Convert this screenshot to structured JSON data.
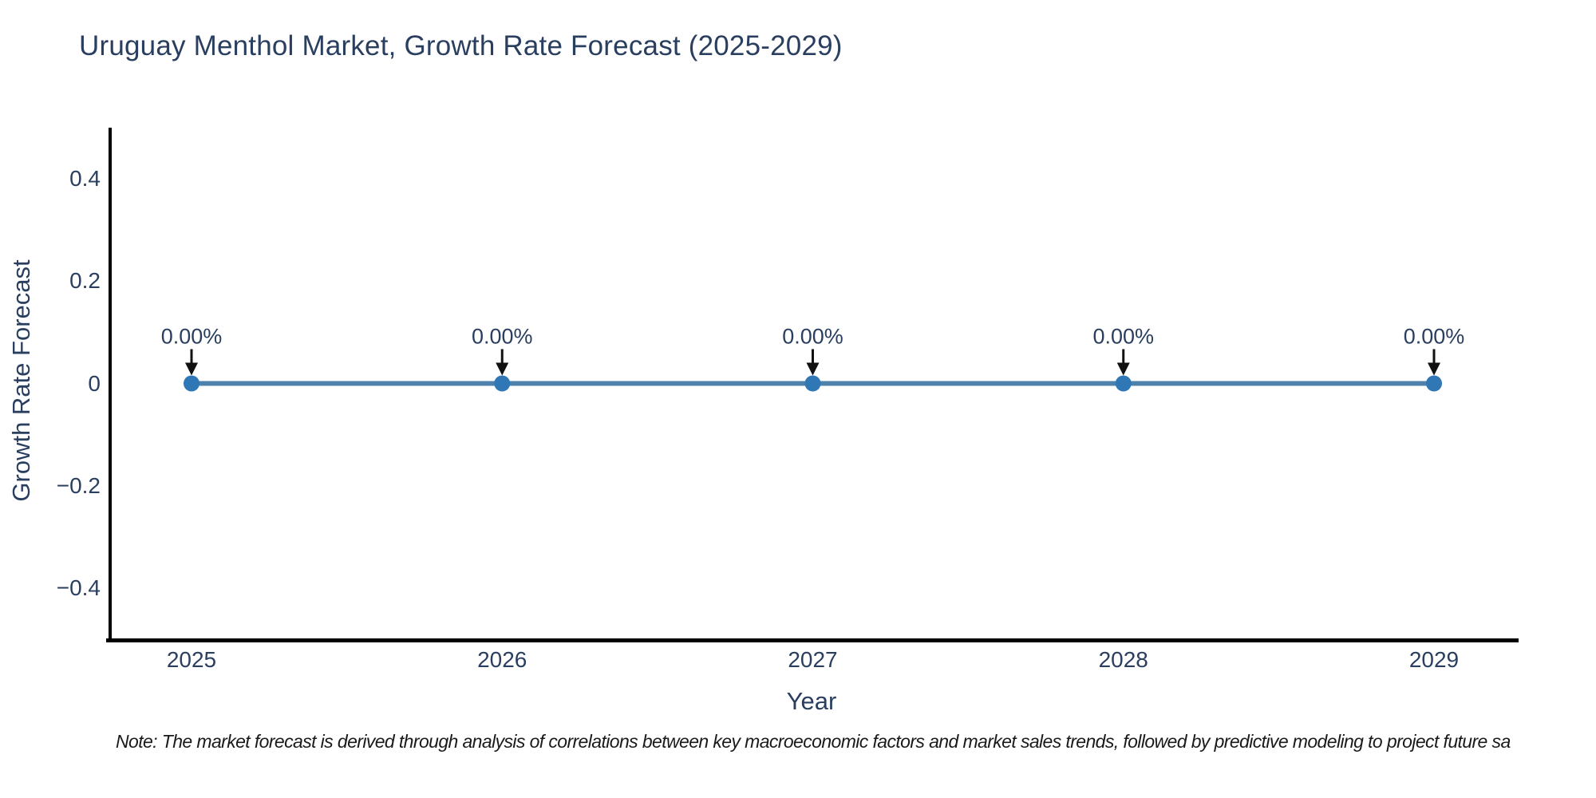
{
  "title": "Uruguay Menthol Market, Growth Rate Forecast (2025-2029)",
  "footnote": "Note: The market forecast is derived through analysis of correlations between key macroeconomic factors and market sales trends, followed by predictive modeling to project future sa",
  "chart_data": {
    "type": "line",
    "title": "Uruguay Menthol Market, Growth Rate Forecast (2025-2029)",
    "x": [
      2025,
      2026,
      2027,
      2028,
      2029
    ],
    "series": [
      {
        "name": "Growth Rate Forecast",
        "values": [
          0,
          0,
          0,
          0,
          0
        ]
      }
    ],
    "point_labels": [
      "0.00%",
      "0.00%",
      "0.00%",
      "0.00%",
      "0.00%"
    ],
    "xlabel": "Year",
    "ylabel": "Growth Rate Forecast",
    "ylim": [
      -0.5,
      0.5
    ],
    "yticks": [
      0.4,
      0.2,
      0,
      -0.2,
      -0.4
    ],
    "grid": false,
    "legend": "none",
    "colors": {
      "line": "#4e81ac",
      "marker": "#3077b5",
      "axis": "#000000",
      "text": "#2a3f5f",
      "arrow": "#111111"
    }
  }
}
